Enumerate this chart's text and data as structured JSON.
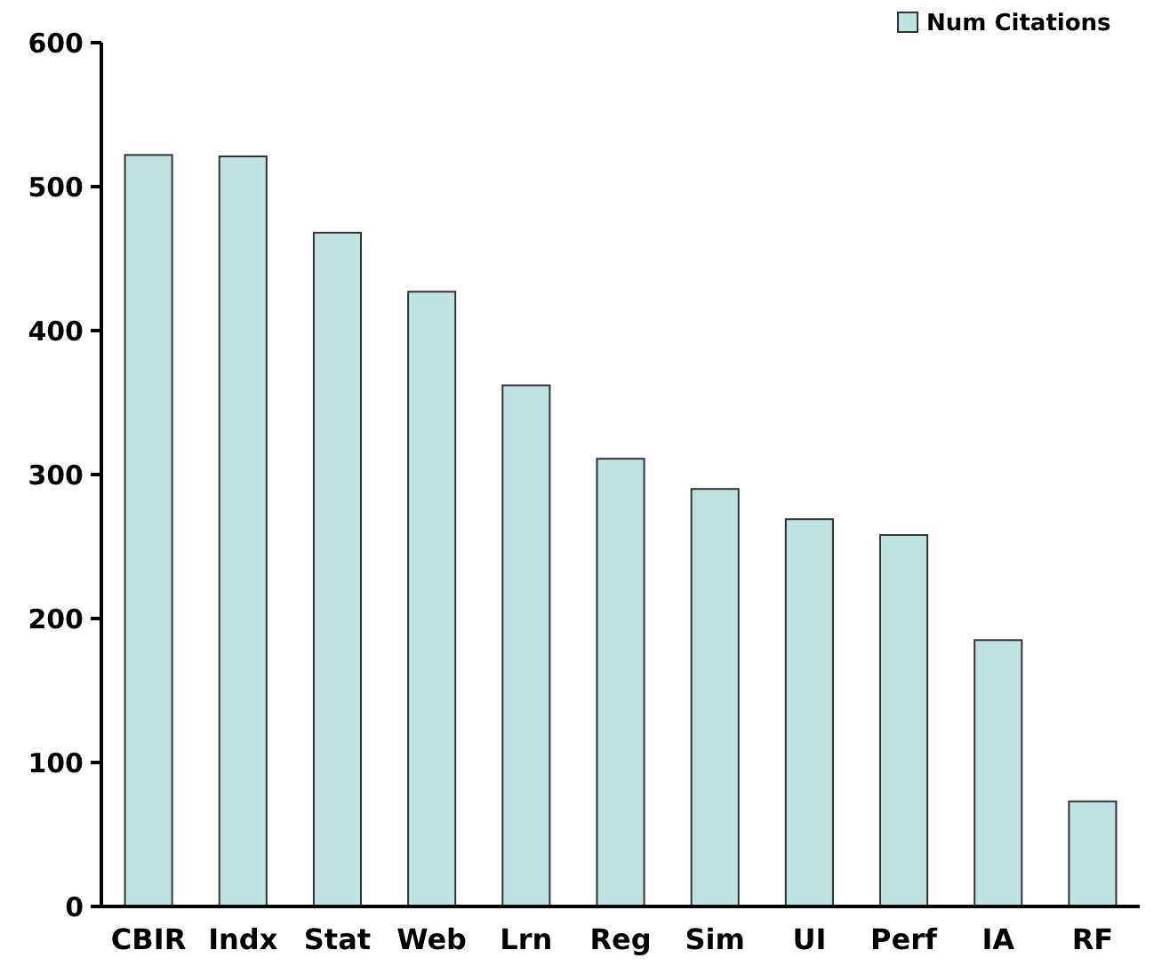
{
  "chart_data": {
    "type": "bar",
    "categories": [
      "CBIR",
      "Indx",
      "Stat",
      "Web",
      "Lrn",
      "Reg",
      "Sim",
      "UI",
      "Perf",
      "IA",
      "RF"
    ],
    "series": [
      {
        "name": "Num Citations",
        "color": "#bfe3e3",
        "values": [
          522,
          521,
          468,
          427,
          362,
          311,
          290,
          269,
          258,
          185,
          73
        ]
      }
    ],
    "ylim": [
      0,
      600
    ],
    "yticks": [
      0,
      100,
      200,
      300,
      400,
      500,
      600
    ],
    "grid": false,
    "legend": "top right"
  }
}
